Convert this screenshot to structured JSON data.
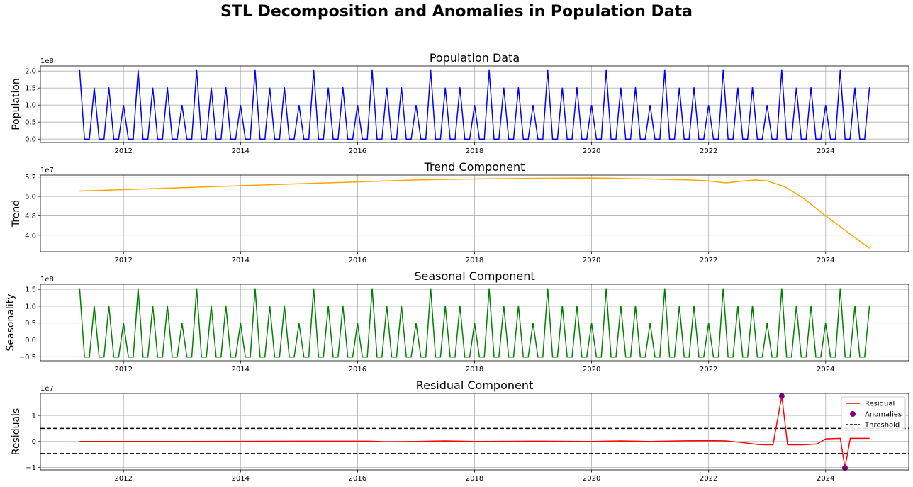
{
  "suptitle": "STL Decomposition and Anomalies in Population Data",
  "chart_data": [
    {
      "type": "line",
      "title": "Population Data",
      "ylabel": "Population",
      "offset_label": "1e8",
      "xlim": [
        2010.58,
        2025.42
      ],
      "ylim": [
        -0.1,
        2.15
      ],
      "xticks": [
        2012,
        2014,
        2016,
        2018,
        2020,
        2022,
        2024
      ],
      "xtick_labels": [
        "2012",
        "2014",
        "2016",
        "2018",
        "2020",
        "2022",
        "2024"
      ],
      "yticks": [
        0,
        0.5,
        1.0,
        1.5,
        2.0
      ],
      "ytick_labels": [
        "0.0",
        "0.5",
        "1.0",
        "1.5",
        "2.0"
      ],
      "grid": true,
      "series": [
        {
          "color": "#0000ff",
          "x_start": 2011.25,
          "x_step": 0.08333,
          "values_unit": "1e8",
          "monthly_pattern": [
            2.03,
            0.0,
            0.0,
            1.51,
            0.0,
            0.0,
            1.52,
            0.0,
            0.0,
            1.0,
            0.0,
            0.0
          ],
          "months": 163
        }
      ]
    },
    {
      "type": "line",
      "title": "Trend Component",
      "ylabel": "Trend",
      "offset_label": "1e7",
      "xlim": [
        2010.58,
        2025.42
      ],
      "ylim": [
        4.43,
        5.22
      ],
      "xticks": [
        2012,
        2014,
        2016,
        2018,
        2020,
        2022,
        2024
      ],
      "xtick_labels": [
        "2012",
        "2014",
        "2016",
        "2018",
        "2020",
        "2022",
        "2024"
      ],
      "yticks": [
        4.6,
        4.8,
        5.0,
        5.2
      ],
      "ytick_labels": [
        "4.6",
        "4.8",
        "5.0",
        "5.2"
      ],
      "grid": true,
      "series": [
        {
          "color": "#ffa500",
          "x": [
            2011.25,
            2012,
            2013,
            2014,
            2015,
            2016,
            2017,
            2018,
            2019,
            2020,
            2021,
            2021.7,
            2022,
            2022.3,
            2022.6,
            2022.8,
            2023.0,
            2023.3,
            2023.6,
            2024.0,
            2024.4,
            2024.75
          ],
          "y": [
            5.055,
            5.07,
            5.09,
            5.11,
            5.13,
            5.15,
            5.17,
            5.18,
            5.186,
            5.19,
            5.18,
            5.17,
            5.16,
            5.14,
            5.16,
            5.17,
            5.16,
            5.1,
            4.99,
            4.8,
            4.62,
            4.465
          ]
        }
      ]
    },
    {
      "type": "line",
      "title": "Seasonal Component",
      "ylabel": "Seasonality",
      "offset_label": "1e8",
      "xlim": [
        2010.58,
        2025.42
      ],
      "ylim": [
        -0.62,
        1.65
      ],
      "xticks": [
        2012,
        2014,
        2016,
        2018,
        2020,
        2022,
        2024
      ],
      "xtick_labels": [
        "2012",
        "2014",
        "2016",
        "2018",
        "2020",
        "2022",
        "2024"
      ],
      "yticks": [
        -0.5,
        0.0,
        0.5,
        1.0,
        1.5
      ],
      "ytick_labels": [
        "−0.5",
        "0.0",
        "0.5",
        "1.0",
        "1.5"
      ],
      "grid": true,
      "series": [
        {
          "color": "#008000",
          "x_start": 2011.25,
          "x_step": 0.08333,
          "values_unit": "1e8",
          "monthly_pattern": [
            1.53,
            -0.51,
            -0.51,
            1.01,
            -0.51,
            -0.51,
            1.02,
            -0.51,
            -0.51,
            0.5,
            -0.51,
            -0.51
          ],
          "months": 163
        }
      ]
    },
    {
      "type": "line",
      "title": "Residual Component",
      "ylabel": "Residuals",
      "offset_label": "1e7",
      "xlim": [
        2010.58,
        2025.42
      ],
      "ylim": [
        -1.1,
        1.85
      ],
      "xticks": [
        2012,
        2014,
        2016,
        2018,
        2020,
        2022,
        2024
      ],
      "xtick_labels": [
        "2012",
        "2014",
        "2016",
        "2018",
        "2020",
        "2022",
        "2024"
      ],
      "yticks": [
        -1,
        0,
        1
      ],
      "ytick_labels": [
        "−1",
        "0",
        "1"
      ],
      "grid": true,
      "legend": {
        "placement": "top-right",
        "entries": [
          {
            "label": "Residual",
            "kind": "line",
            "color": "#ff0000"
          },
          {
            "label": "Anomalies",
            "kind": "point",
            "color": "#800080"
          },
          {
            "label": "Threshold",
            "kind": "dashed",
            "color": "#000000"
          }
        ]
      },
      "thresholds": [
        0.5,
        -0.47
      ],
      "series": [
        {
          "name": "Residual",
          "color": "#ff0000",
          "x": [
            2011.25,
            2013,
            2015,
            2016.2,
            2016.5,
            2017,
            2017.5,
            2018,
            2019,
            2020,
            2020.5,
            2021,
            2021.5,
            2022,
            2022.3,
            2022.6,
            2022.85,
            2023.0,
            2023.1,
            2023.25,
            2023.35,
            2023.6,
            2023.85,
            2024.0,
            2024.25,
            2024.33,
            2024.42,
            2024.75
          ],
          "y": [
            0.0,
            0.0,
            0.01,
            0.01,
            -0.01,
            0.0,
            0.02,
            0.0,
            0.01,
            0.0,
            0.02,
            0.0,
            0.02,
            0.03,
            0.02,
            -0.05,
            -0.12,
            -0.13,
            -0.13,
            1.75,
            -0.13,
            -0.13,
            -0.1,
            0.1,
            0.12,
            -1.02,
            0.12,
            0.12
          ]
        },
        {
          "name": "Anomalies",
          "kind": "scatter",
          "color": "#800080",
          "x": [
            2023.25,
            2024.33
          ],
          "y": [
            1.75,
            -1.02
          ]
        }
      ]
    }
  ]
}
